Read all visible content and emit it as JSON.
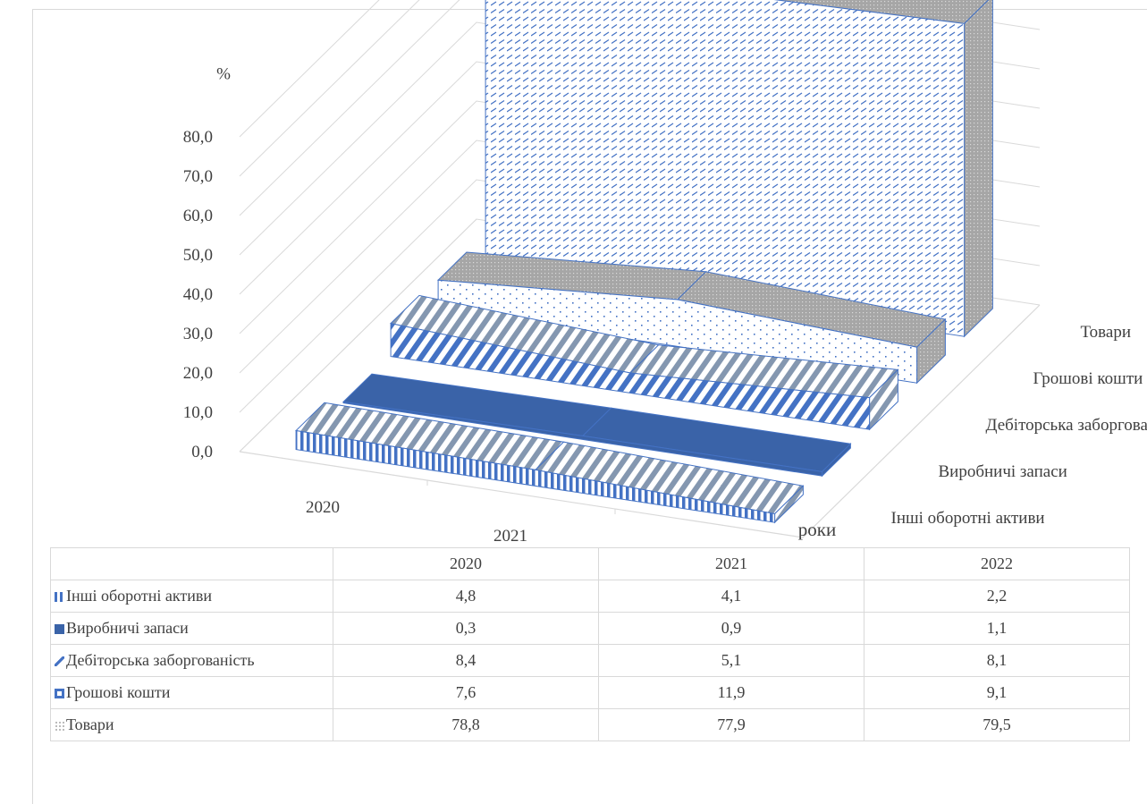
{
  "chart_data": {
    "type": "bar",
    "categories": [
      "2020",
      "2021",
      "2022"
    ],
    "series": [
      {
        "name": "Інші оборотні активи",
        "values": [
          4.8,
          4.1,
          2.2
        ]
      },
      {
        "name": "Виробничі запаси",
        "values": [
          0.3,
          0.9,
          1.1
        ]
      },
      {
        "name": "Дебіторська заборгованість",
        "values": [
          8.4,
          5.1,
          8.1
        ]
      },
      {
        "name": "Грошові кошти",
        "values": [
          7.6,
          11.9,
          9.1
        ]
      },
      {
        "name": "Товари",
        "values": [
          78.8,
          77.9,
          79.5
        ]
      }
    ],
    "ylabel": "%",
    "xlabel": "роки",
    "ylim": [
      0,
      80
    ],
    "yticks": [
      "0,0",
      "10,0",
      "20,0",
      "30,0",
      "40,0",
      "50,0",
      "60,0",
      "70,0",
      "80,0"
    ],
    "grid": true,
    "chart_style": "3d-area",
    "data_table": true
  },
  "colors": {
    "accent": "#4472c4",
    "dark_blue": "#3a63a8",
    "grey": "#a6a6a6",
    "text": "#404040",
    "grid": "#d9d9d9"
  }
}
